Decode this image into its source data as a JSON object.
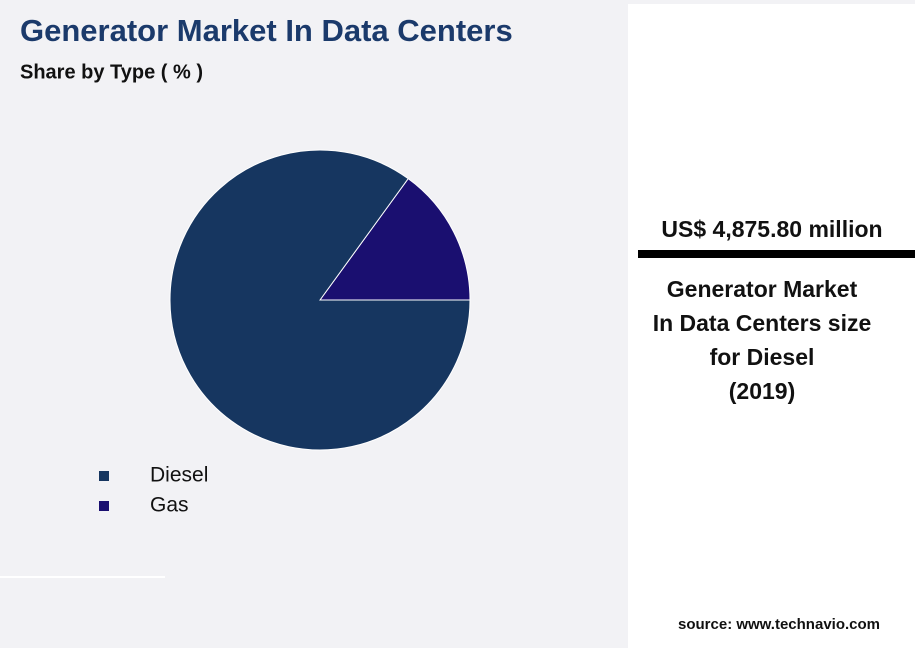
{
  "chart_data": {
    "type": "pie",
    "title": "Generator Market In Data Centers",
    "subtitle": "Share by Type ( % )",
    "categories": [
      "Diesel",
      "Gas"
    ],
    "values": [
      85,
      15
    ],
    "colors": [
      "#163660",
      "#1a0f70"
    ]
  },
  "highlight": {
    "value_text": "US$ 4,875.80 million",
    "description": [
      "Generator Market",
      "In Data Centers size",
      "for Diesel",
      "(2019)"
    ]
  },
  "source": "source: www.technavio.com"
}
